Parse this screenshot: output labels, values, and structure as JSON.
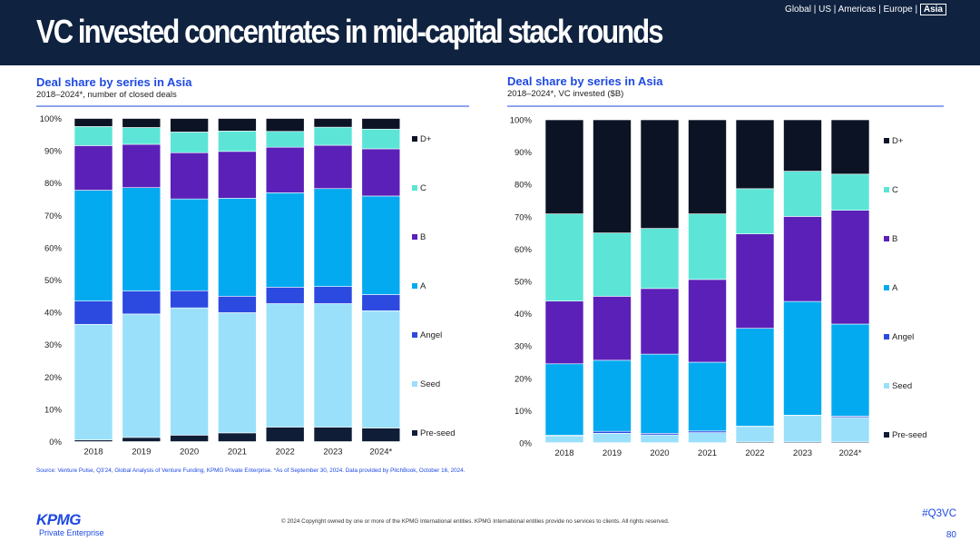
{
  "header": {
    "title": "VC invested concentrates in mid-capital stack rounds",
    "nav": {
      "items": [
        "Global",
        "US",
        "Americas",
        "Europe"
      ],
      "separator": "|",
      "active": "Asia"
    }
  },
  "colors": {
    "header_bg": "#0f2240",
    "accent": "#1e49e2",
    "Pre-seed": "#0f1d36",
    "Seed": "#9ae0fb",
    "Angel": "#2c4ae0",
    "A": "#04aaf0",
    "B": "#5b20b8",
    "C": "#5ce5d7",
    "D+": "#0c1324"
  },
  "chart_data": [
    {
      "type": "bar",
      "stacked": true,
      "title": "Deal share by series in Asia",
      "subtitle": "2018–2024*, number of closed deals",
      "categories": [
        "2018",
        "2019",
        "2020",
        "2021",
        "2022",
        "2023",
        "2024*"
      ],
      "ylim": [
        0,
        100
      ],
      "yticks": [
        "0%",
        "10%",
        "20%",
        "30%",
        "40%",
        "50%",
        "60%",
        "70%",
        "80%",
        "90%",
        "100%"
      ],
      "legend_position": "right",
      "series": [
        {
          "name": "Pre-seed",
          "values": [
            0.5,
            1.3,
            2.0,
            2.7,
            4.5,
            4.5,
            4.2
          ]
        },
        {
          "name": "Seed",
          "values": [
            35.8,
            38.2,
            39.4,
            37.2,
            38.2,
            38.2,
            36.3
          ]
        },
        {
          "name": "Angel",
          "values": [
            7.2,
            7.1,
            5.3,
            5.1,
            5.1,
            5.3,
            5.0
          ]
        },
        {
          "name": "A",
          "values": [
            34.3,
            32.0,
            28.4,
            30.3,
            29.2,
            30.3,
            30.5
          ]
        },
        {
          "name": "B",
          "values": [
            13.8,
            13.4,
            14.3,
            14.5,
            14.1,
            13.4,
            14.6
          ]
        },
        {
          "name": "C",
          "values": [
            5.9,
            5.2,
            6.4,
            6.3,
            4.9,
            5.6,
            6.1
          ]
        },
        {
          "name": "D+",
          "values": [
            2.5,
            2.8,
            4.2,
            3.9,
            4.0,
            2.7,
            3.3
          ]
        }
      ]
    },
    {
      "type": "bar",
      "stacked": true,
      "title": "Deal share by series in Asia",
      "subtitle": "2018–2024*, VC invested ($B)",
      "categories": [
        "2018",
        "2019",
        "2020",
        "2021",
        "2022",
        "2023",
        "2024*"
      ],
      "ylim": [
        0,
        100
      ],
      "yticks": [
        "0%",
        "10%",
        "20%",
        "30%",
        "40%",
        "50%",
        "60%",
        "70%",
        "80%",
        "90%",
        "100%"
      ],
      "legend_position": "right",
      "series": [
        {
          "name": "Pre-seed",
          "values": [
            0.1,
            0.1,
            0.1,
            0.1,
            0.3,
            0.3,
            0.3
          ]
        },
        {
          "name": "Seed",
          "values": [
            2.1,
            2.9,
            2.4,
            3.1,
            4.8,
            8.2,
            7.6
          ]
        },
        {
          "name": "Angel",
          "values": [
            0.2,
            0.6,
            0.5,
            0.5,
            0.1,
            0.1,
            0.4
          ]
        },
        {
          "name": "A",
          "values": [
            22.1,
            22.0,
            24.5,
            21.3,
            30.3,
            35.2,
            28.5
          ]
        },
        {
          "name": "B",
          "values": [
            19.4,
            19.8,
            20.3,
            25.6,
            29.2,
            26.3,
            35.2
          ]
        },
        {
          "name": "C",
          "values": [
            27.0,
            19.6,
            18.6,
            20.3,
            14.0,
            14.0,
            11.2
          ]
        },
        {
          "name": "D+",
          "values": [
            29.1,
            35.0,
            33.6,
            29.1,
            21.3,
            15.9,
            16.8
          ]
        }
      ]
    }
  ],
  "footer": {
    "source": "Source: Venture Pulse, Q3'24, Global Analysis of Venture Funding, KPMG Private Enterprise. *As of September 30, 2024. Data provided by PitchBook, October 16, 2024.",
    "logo_text": "KPMG",
    "logo_subtext": "Private Enterprise",
    "copyright": "© 2024 Copyright owned by one or more of the KPMG International entities. KPMG International entities provide no services to clients. All rights reserved.",
    "hashtag": "#Q3VC",
    "page_number": "80"
  }
}
